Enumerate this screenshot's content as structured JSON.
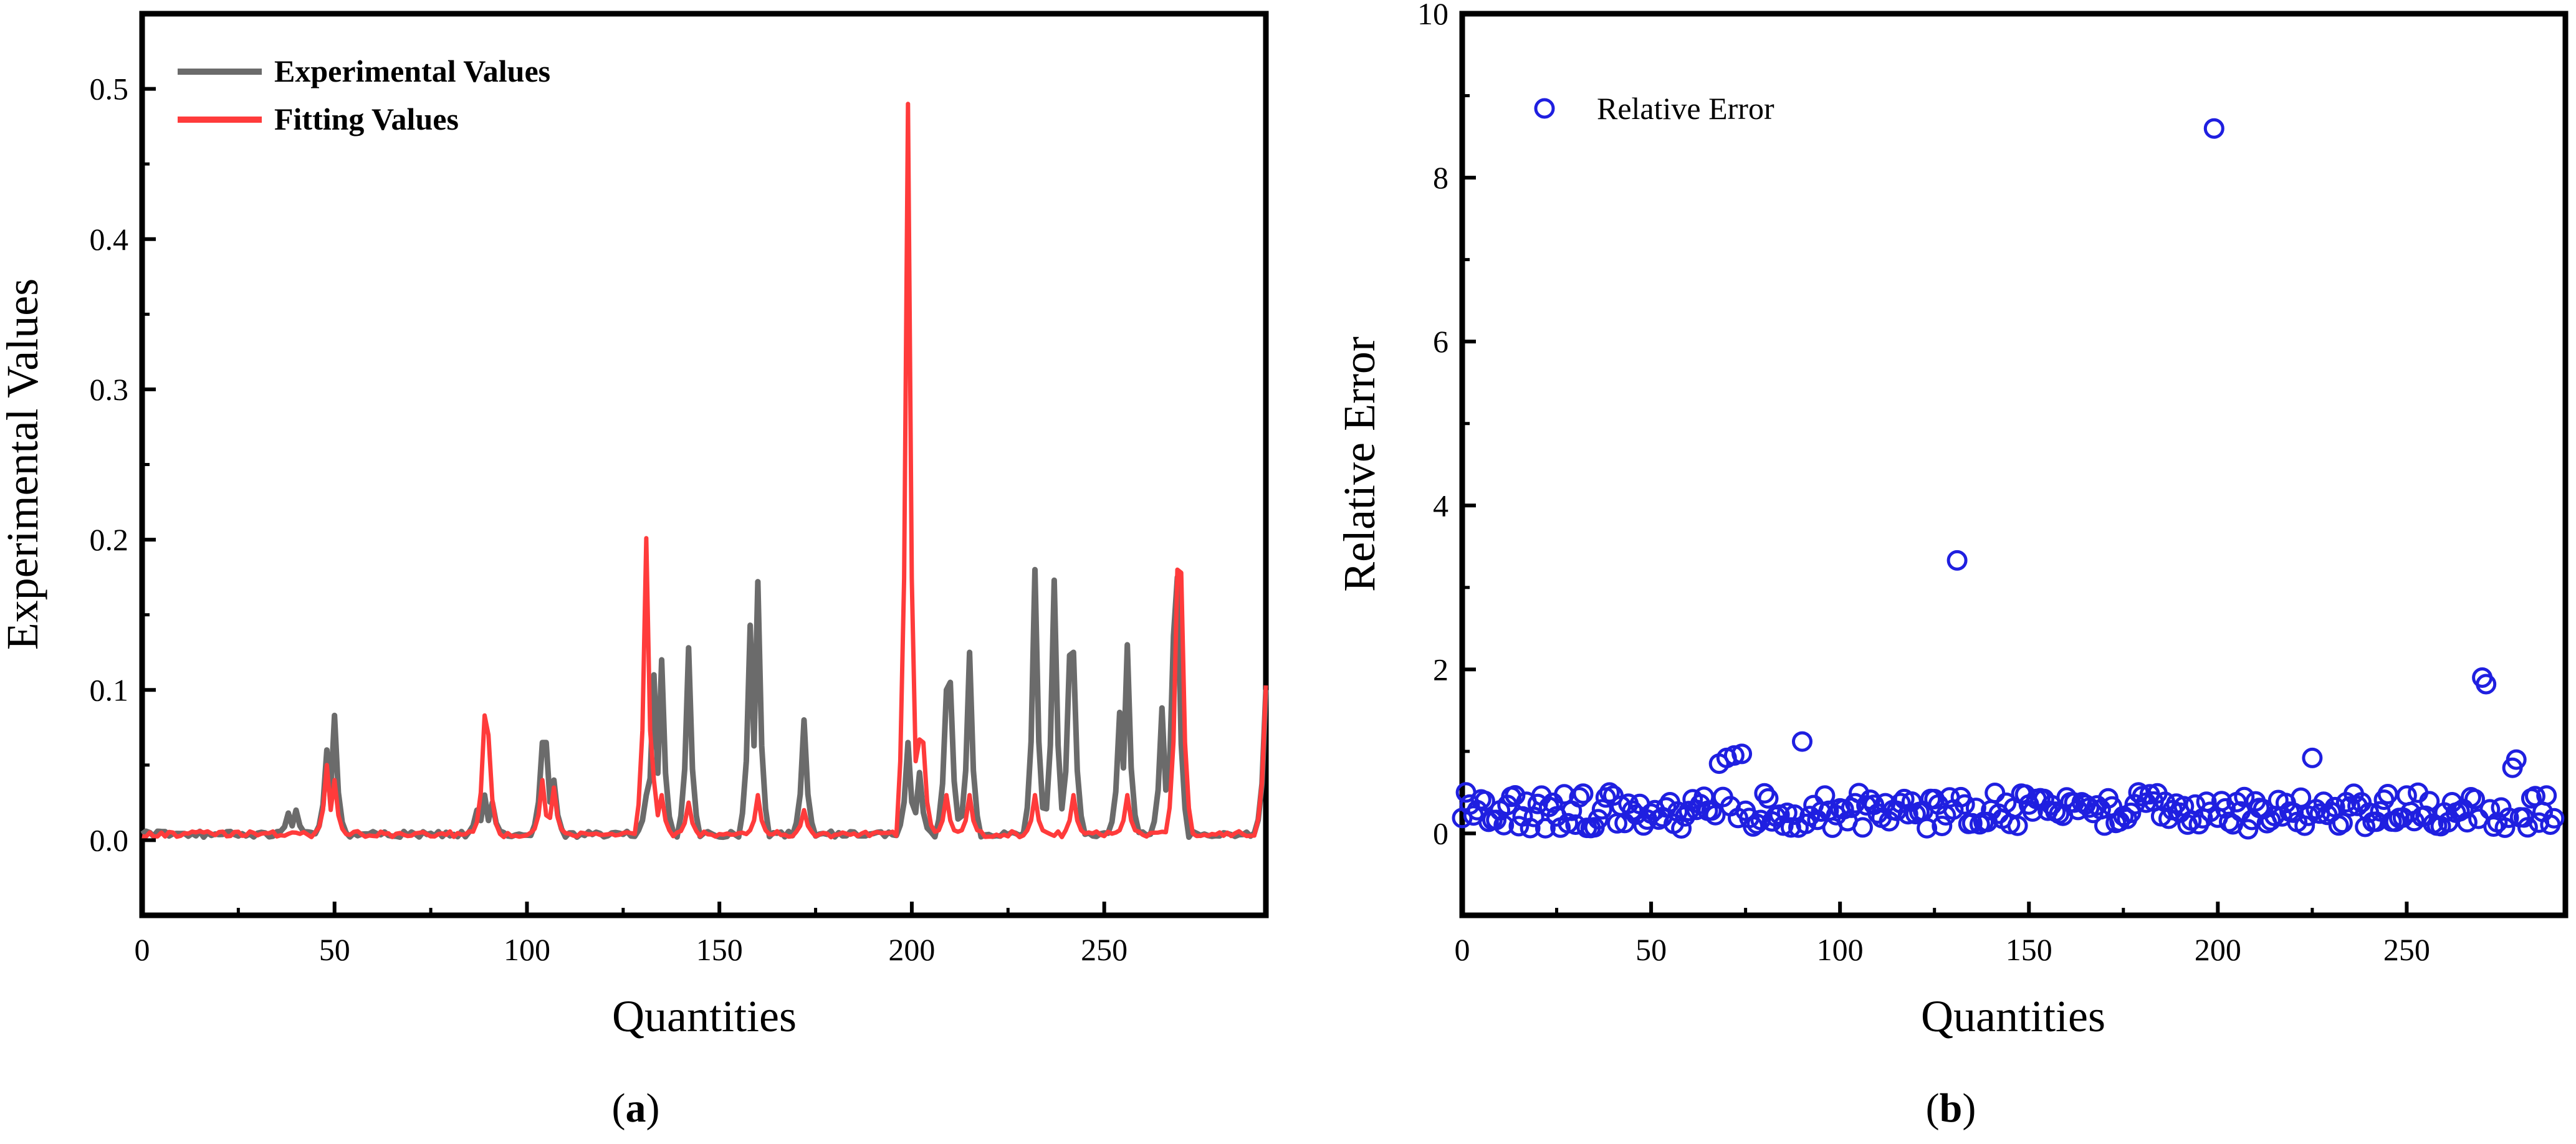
{
  "chart_data": [
    {
      "type": "line",
      "panel_label": "a",
      "xlabel": "Quantities",
      "ylabel": "Experimental Values",
      "xlim": [
        0,
        292
      ],
      "ylim": [
        -0.05,
        0.55
      ],
      "xticks": [
        0,
        50,
        100,
        150,
        200,
        250
      ],
      "yticks": [
        0.0,
        0.1,
        0.2,
        0.3,
        0.4,
        0.5
      ],
      "xtick_labels": [
        "0",
        "50",
        "100",
        "150",
        "200",
        "250"
      ],
      "ytick_labels": [
        "0.0",
        "0.1",
        "0.2",
        "0.3",
        "0.4",
        "0.5"
      ],
      "legend_position": "top-left",
      "baseline": 0.004,
      "series": [
        {
          "name": "Experimental Values",
          "color": "#6b6b6b",
          "peaks": [
            [
              38,
              0.018
            ],
            [
              40,
              0.02
            ],
            [
              48,
              0.06
            ],
            [
              50,
              0.083
            ],
            [
              87,
              0.02
            ],
            [
              89,
              0.03
            ],
            [
              91,
              0.025
            ],
            [
              104,
              0.065
            ],
            [
              105,
              0.065
            ],
            [
              107,
              0.04
            ],
            [
              131,
              0.03
            ],
            [
              133,
              0.11
            ],
            [
              135,
              0.12
            ],
            [
              142,
              0.128
            ],
            [
              158,
              0.143
            ],
            [
              160,
              0.172
            ],
            [
              172,
              0.08
            ],
            [
              199,
              0.065
            ],
            [
              202,
              0.045
            ],
            [
              209,
              0.1
            ],
            [
              210,
              0.105
            ],
            [
              215,
              0.125
            ],
            [
              232,
              0.18
            ],
            [
              237,
              0.173
            ],
            [
              241,
              0.123
            ],
            [
              242,
              0.125
            ],
            [
              254,
              0.085
            ],
            [
              256,
              0.13
            ],
            [
              265,
              0.088
            ],
            [
              268,
              0.136
            ],
            [
              269,
              0.175
            ],
            [
              292,
              0.1
            ]
          ]
        },
        {
          "name": "Fitting Values",
          "color": "#ff3b3b",
          "peaks": [
            [
              48,
              0.05
            ],
            [
              50,
              0.04
            ],
            [
              89,
              0.083
            ],
            [
              90,
              0.07
            ],
            [
              104,
              0.04
            ],
            [
              107,
              0.035
            ],
            [
              131,
              0.201
            ],
            [
              133,
              0.04
            ],
            [
              135,
              0.03
            ],
            [
              142,
              0.025
            ],
            [
              160,
              0.03
            ],
            [
              172,
              0.02
            ],
            [
              199,
              0.49
            ],
            [
              202,
              0.067
            ],
            [
              203,
              0.065
            ],
            [
              209,
              0.03
            ],
            [
              215,
              0.03
            ],
            [
              232,
              0.03
            ],
            [
              242,
              0.03
            ],
            [
              256,
              0.03
            ],
            [
              269,
              0.18
            ],
            [
              270,
              0.178
            ],
            [
              292,
              0.103
            ]
          ]
        }
      ]
    },
    {
      "type": "scatter",
      "panel_label": "b",
      "xlabel": "Quantities",
      "ylabel": "Relative Error",
      "xlim": [
        0,
        292
      ],
      "ylim": [
        -1,
        10
      ],
      "xticks": [
        0,
        50,
        100,
        150,
        200,
        250
      ],
      "yticks": [
        0,
        2,
        4,
        6,
        8,
        10
      ],
      "xtick_labels": [
        "0",
        "50",
        "100",
        "150",
        "200",
        "250"
      ],
      "ytick_labels": [
        "0",
        "2",
        "4",
        "6",
        "8",
        "10"
      ],
      "legend_position": "top-left",
      "series": [
        {
          "name": "Relative Error",
          "color": "#1f1fe0",
          "outliers": [
            [
              68,
              0.85
            ],
            [
              70,
              0.92
            ],
            [
              72,
              0.95
            ],
            [
              74,
              0.97
            ],
            [
              90,
              1.12
            ],
            [
              131,
              3.33
            ],
            [
              199,
              8.6
            ],
            [
              225,
              0.92
            ],
            [
              270,
              1.9
            ],
            [
              271,
              1.82
            ],
            [
              278,
              0.8
            ],
            [
              279,
              0.9
            ]
          ]
        }
      ]
    }
  ],
  "captions": {
    "a": {
      "open": "(",
      "letter": "a",
      "close": ")"
    },
    "b": {
      "open": "(",
      "letter": "b",
      "close": ")"
    }
  }
}
